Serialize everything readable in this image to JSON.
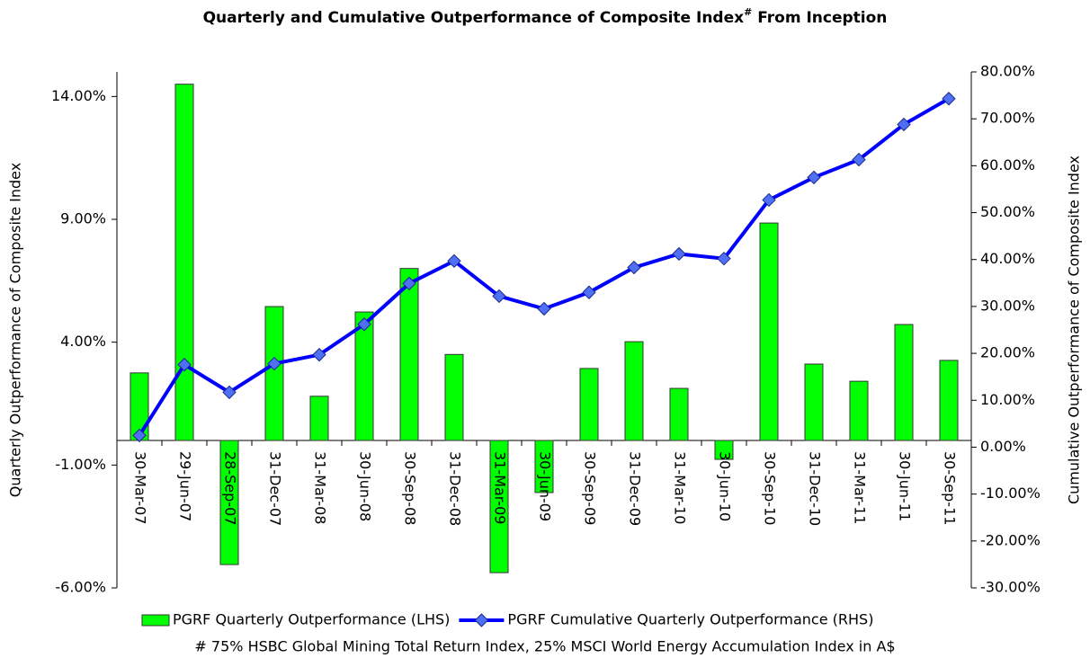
{
  "chart_data": {
    "type": "bar_line",
    "title": "Quarterly and Cumulative Outperformance of Composite Index",
    "title_marker": "#",
    "title_end": " From Inception",
    "y_label": "Quarterly Outperformance of Composite Index",
    "y2_label": "Cumulative Outperformance of Composite Index",
    "footnote": "# 75% HSBC Global Mining Total Return Index, 25% MSCI World Energy Accumulation Index in A$",
    "categories": [
      "30-Mar-07",
      "29-Jun-07",
      "28-Sep-07",
      "31-Dec-07",
      "31-Mar-08",
      "30-Jun-08",
      "30-Sep-08",
      "31-Dec-08",
      "31-Mar-09",
      "30-Jun-09",
      "30-Sep-09",
      "31-Dec-09",
      "31-Mar-10",
      "30-Jun-10",
      "30-Sep-10",
      "31-Dec-10",
      "31-Mar-11",
      "30-Jun-11",
      "30-Sep-11"
    ],
    "series": [
      {
        "name": "PGRF Quarterly Outperformance (LHS)",
        "type": "bar",
        "color": "#00ff00",
        "values": [
          2.75,
          14.5,
          -5.05,
          5.45,
          1.8,
          5.23,
          7.0,
          3.5,
          -5.38,
          -2.12,
          2.93,
          4.02,
          2.12,
          -0.77,
          8.85,
          3.11,
          2.41,
          4.72,
          3.26
        ]
      },
      {
        "name": "PGRF Cumulative Quarterly Outperformance (RHS)",
        "type": "line",
        "axis": "y2",
        "color": "#0000ff",
        "marker_color": "#4f6ff5",
        "values": [
          2.5,
          17.6,
          11.7,
          17.8,
          19.7,
          26.2,
          34.9,
          39.7,
          32.2,
          29.5,
          33.0,
          38.3,
          41.2,
          40.2,
          52.7,
          57.5,
          61.3,
          68.8,
          74.3
        ]
      }
    ],
    "ylim": [
      -6,
      15
    ],
    "yticks": [
      {
        "value": -6,
        "label": "-6.00%"
      },
      {
        "value": -1,
        "label": "-1.00%"
      },
      {
        "value": 4,
        "label": "4.00%"
      },
      {
        "value": 9,
        "label": "9.00%"
      },
      {
        "value": 14,
        "label": "14.00%"
      }
    ],
    "y2lim": [
      -30,
      80
    ],
    "y2ticks": [
      {
        "value": -30,
        "label": "-30.00%"
      },
      {
        "value": -20,
        "label": "-20.00%"
      },
      {
        "value": -10,
        "label": "-10.00%"
      },
      {
        "value": 0,
        "label": "0.00%"
      },
      {
        "value": 10,
        "label": "10.00%"
      },
      {
        "value": 20,
        "label": "20.00%"
      },
      {
        "value": 30,
        "label": "30.00%"
      },
      {
        "value": 40,
        "label": "40.00%"
      },
      {
        "value": 50,
        "label": "50.00%"
      },
      {
        "value": 60,
        "label": "60.00%"
      },
      {
        "value": 70,
        "label": "70.00%"
      },
      {
        "value": 80,
        "label": "80.00%"
      }
    ]
  }
}
